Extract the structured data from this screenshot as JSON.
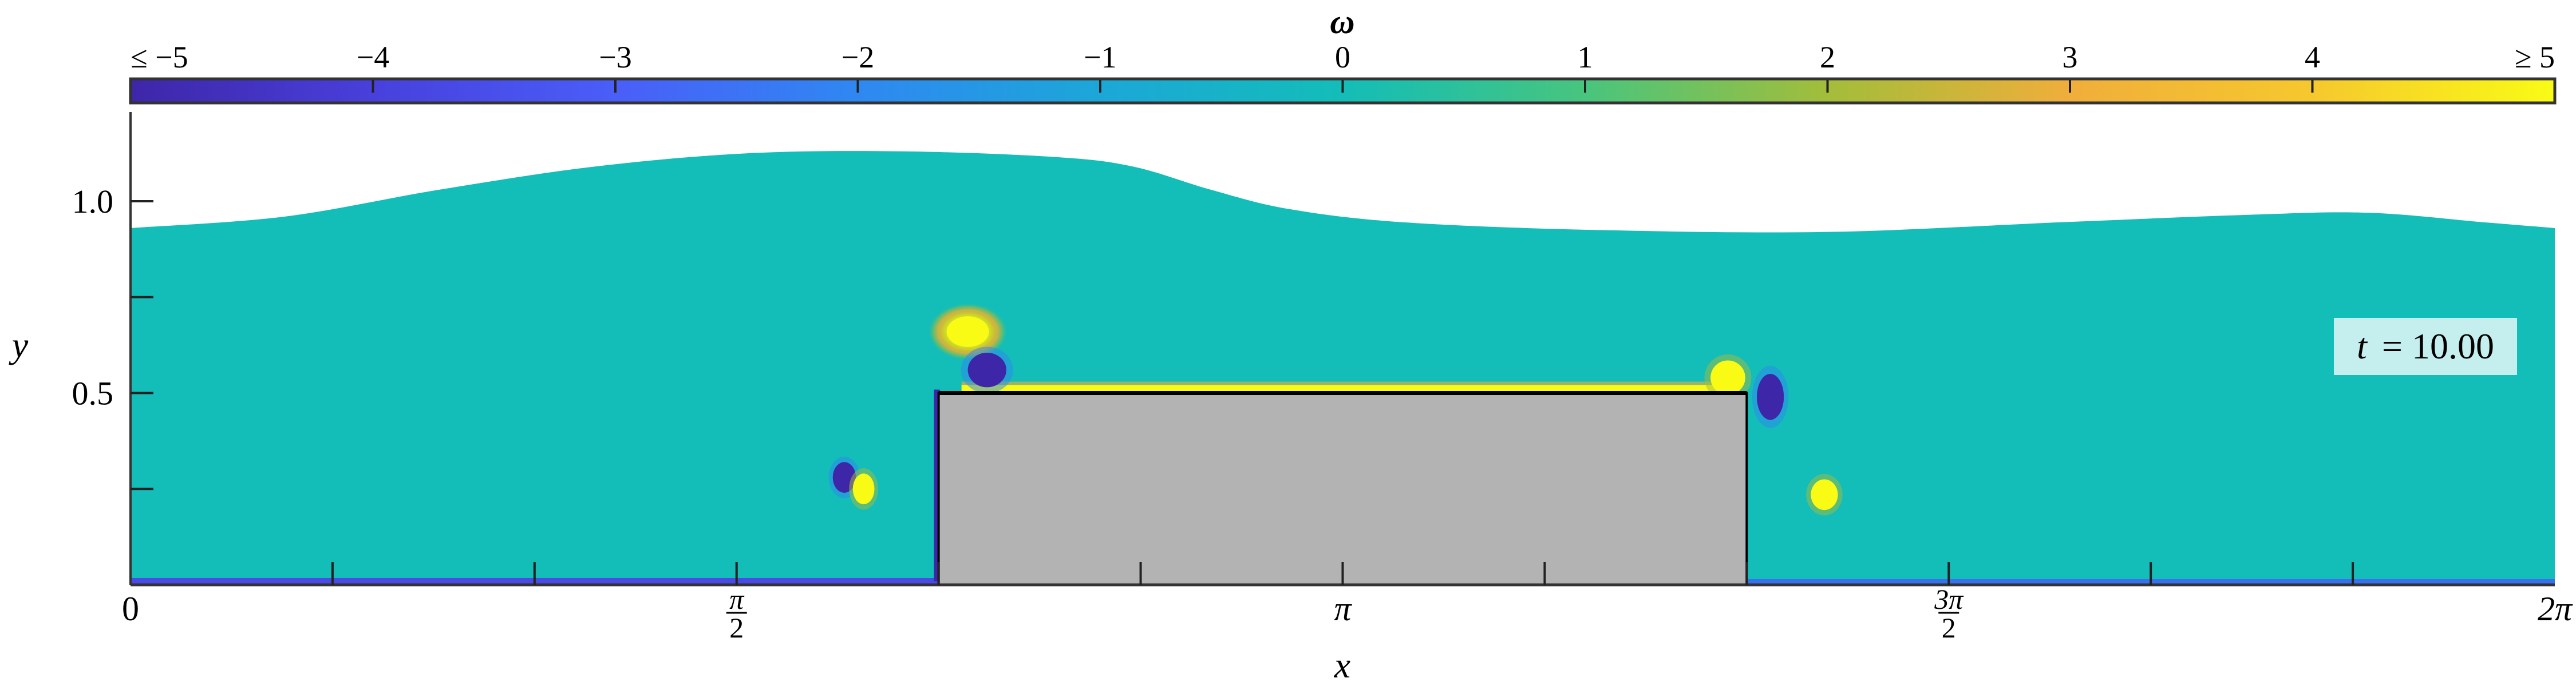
{
  "chart_data": {
    "type": "heatmap",
    "colorbar": {
      "label": "ω",
      "range": [
        -5,
        5
      ],
      "ticks": [
        -5,
        -4,
        -3,
        -2,
        -1,
        0,
        1,
        2,
        3,
        4,
        5
      ],
      "tick_labels": [
        "≤ −5",
        "−4",
        "−3",
        "−2",
        "−1",
        "0",
        "1",
        "2",
        "3",
        "4",
        "≥ 5"
      ],
      "colormap": [
        "#3e26a8",
        "#4840dc",
        "#4a5ef8",
        "#2f88f2",
        "#1ca7d8",
        "#13bdb8",
        "#48c57e",
        "#a3bd3a",
        "#f0ae3b",
        "#f6c82e",
        "#f9fb15"
      ],
      "placement": "top"
    },
    "xlabel": "x",
    "ylabel": "y",
    "xlim": [
      0,
      6.2832
    ],
    "ylim": [
      0,
      1.23
    ],
    "x_ticks": [
      0,
      0.5236,
      1.0472,
      1.5708,
      2.0944,
      2.618,
      3.1416,
      3.6652,
      4.1888,
      4.7124,
      5.236,
      5.7596,
      6.2832
    ],
    "x_tick_labels": [
      {
        "value": 0,
        "label": "0"
      },
      {
        "value": 1.5708,
        "num": "π",
        "den": "2"
      },
      {
        "value": 3.1416,
        "label": "π"
      },
      {
        "value": 4.7124,
        "num": "3π",
        "den": "2"
      },
      {
        "value": 6.2832,
        "label": "2π"
      }
    ],
    "y_ticks": [
      0.25,
      0.5,
      0.75,
      1.0
    ],
    "y_tick_labels": [
      {
        "value": 0.5,
        "label": "0.5"
      },
      {
        "value": 1.0,
        "label": "1.0"
      }
    ],
    "background_value": 0,
    "free_surface": {
      "x": [
        0,
        0.4,
        0.8,
        1.2,
        1.6,
        2.0,
        2.4,
        2.6,
        2.8,
        3.0,
        3.3,
        3.8,
        4.4,
        5.0,
        5.5,
        5.8,
        6.1,
        6.2832
      ],
      "y": [
        0.93,
        0.96,
        1.03,
        1.09,
        1.125,
        1.13,
        1.115,
        1.09,
        1.03,
        0.98,
        0.945,
        0.925,
        0.92,
        0.945,
        0.965,
        0.97,
        0.945,
        0.93
      ]
    },
    "obstacle": {
      "x": [
        2.0944,
        4.1888
      ],
      "y": [
        0,
        0.5
      ],
      "color": "#b3b3b3"
    },
    "vortices": [
      {
        "x": 2.17,
        "y": 0.66,
        "omega": 5,
        "rx": 0.055,
        "ry": 0.04,
        "ring": true
      },
      {
        "x": 2.22,
        "y": 0.56,
        "omega": -5,
        "rx": 0.05,
        "ry": 0.045
      },
      {
        "x": 1.85,
        "y": 0.28,
        "omega": -5,
        "rx": 0.03,
        "ry": 0.04
      },
      {
        "x": 1.9,
        "y": 0.25,
        "omega": 5,
        "rx": 0.028,
        "ry": 0.04
      },
      {
        "x": 4.14,
        "y": 0.54,
        "omega": 5,
        "rx": 0.045,
        "ry": 0.045
      },
      {
        "x": 4.25,
        "y": 0.49,
        "omega": -5,
        "rx": 0.035,
        "ry": 0.06
      },
      {
        "x": 4.39,
        "y": 0.235,
        "omega": 5,
        "rx": 0.035,
        "ry": 0.04
      }
    ],
    "annotation": "t = 10.00",
    "annotation_t": "t",
    "annotation_value": "= 10.00"
  }
}
